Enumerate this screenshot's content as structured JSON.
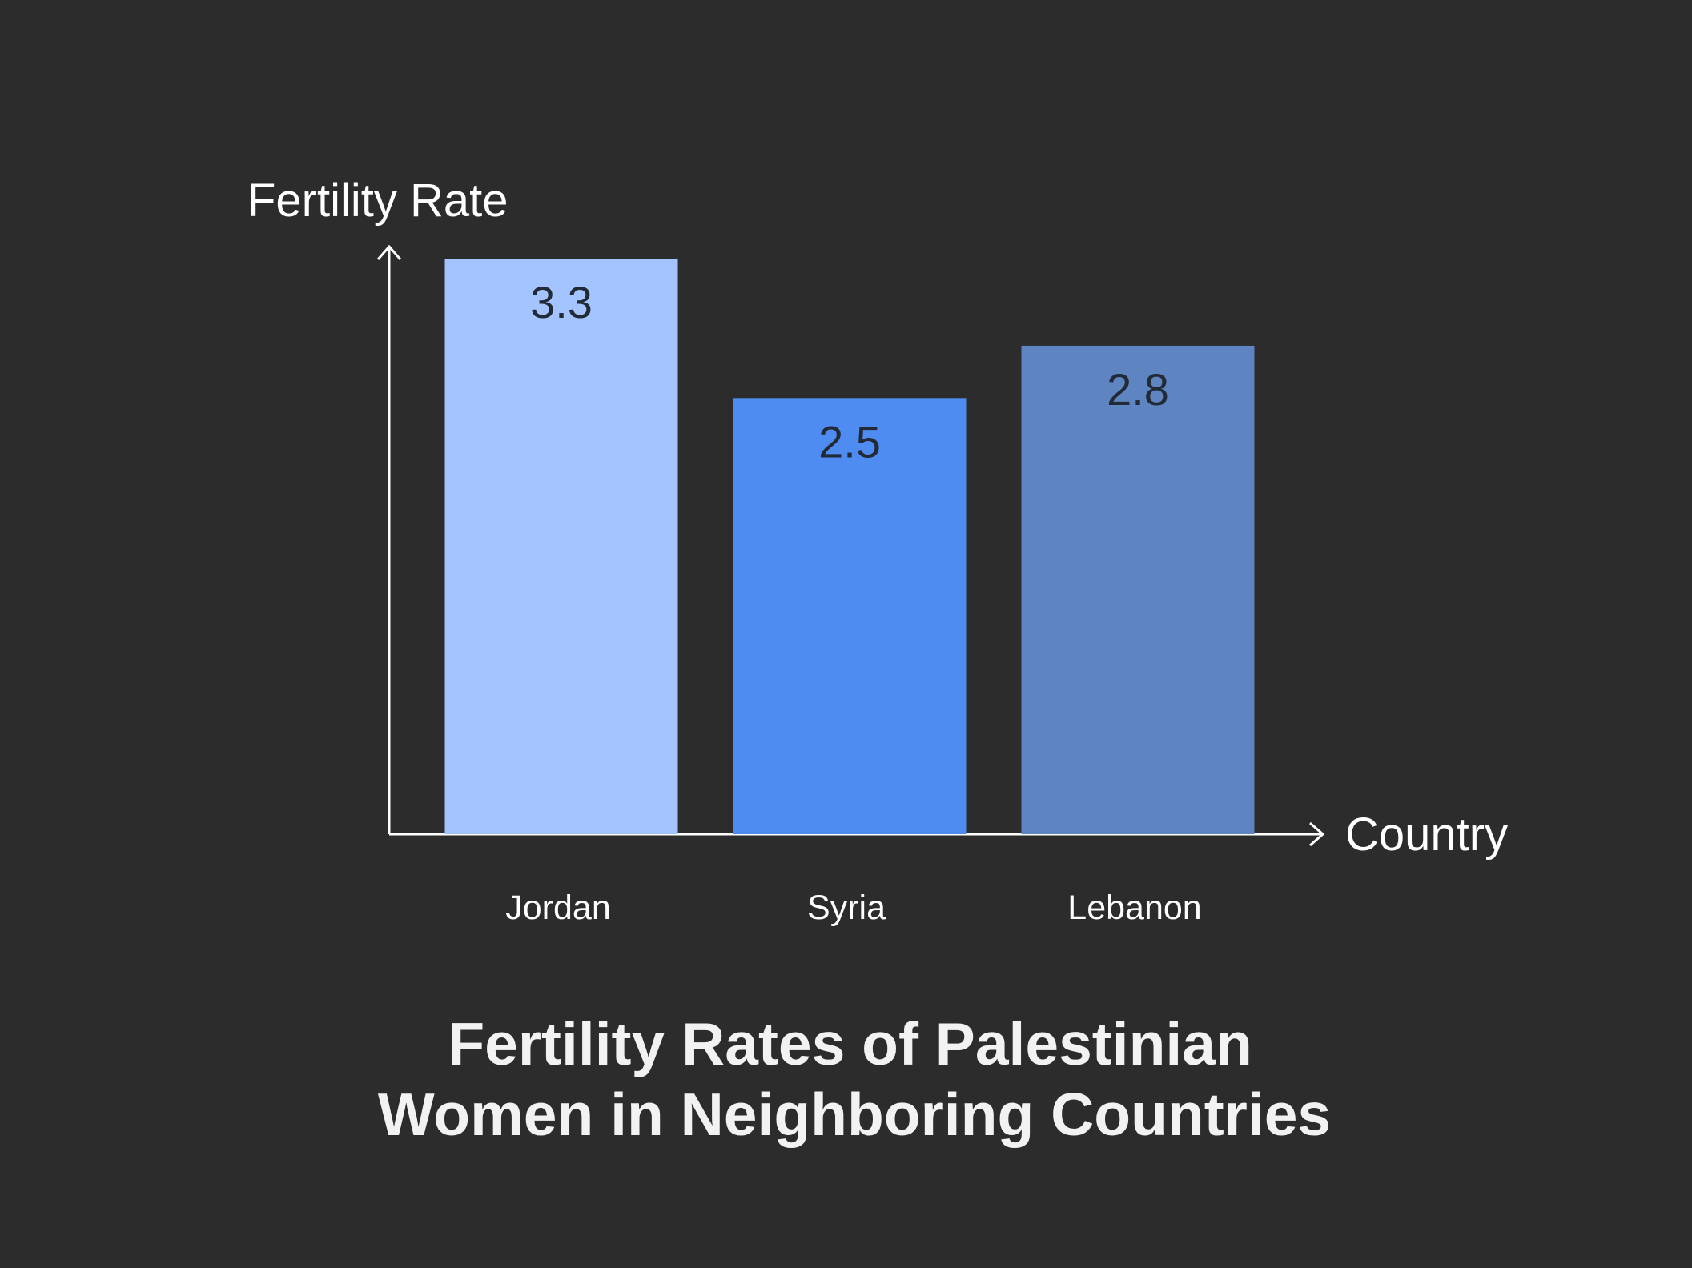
{
  "chart_data": {
    "type": "bar",
    "title": "Fertility Rates of Palestinian Women in Neighboring Countries",
    "title_lines": [
      "Fertility Rates of Palestinian",
      "Women in Neighboring Countries"
    ],
    "xlabel": "Country",
    "ylabel": "Fertility Rate",
    "categories": [
      "Jordan",
      "Syria",
      "Lebanon"
    ],
    "values": [
      3.3,
      2.5,
      2.8
    ],
    "value_labels": [
      "3.3",
      "2.5",
      "2.8"
    ],
    "bar_colors": [
      "#a3c4ff",
      "#4f8cf2",
      "#5f84c2"
    ],
    "ylim": [
      0,
      3.3
    ],
    "grid": false,
    "legend": "none"
  },
  "colors": {
    "background": "#2c2c2c",
    "axis": "#ffffff",
    "value_text": "#222a36"
  }
}
